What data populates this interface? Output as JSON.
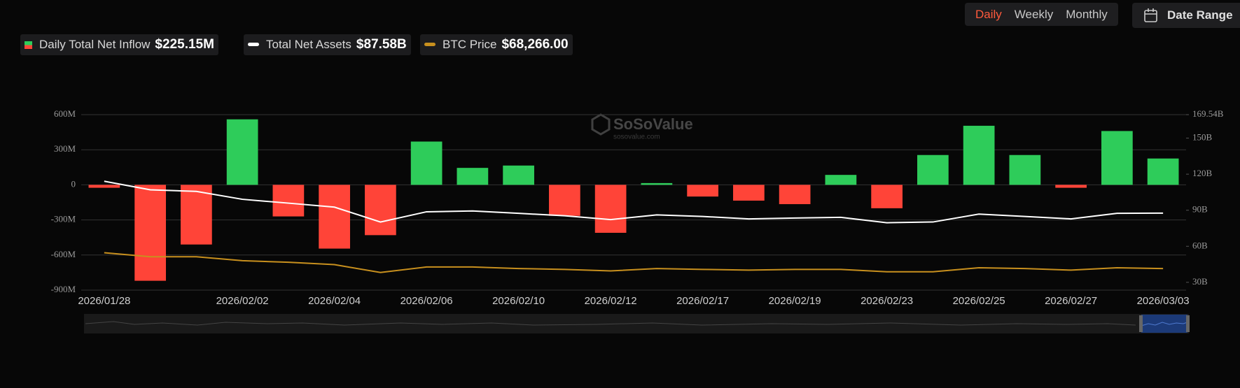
{
  "controls": {
    "periods": [
      "Daily",
      "Weekly",
      "Monthly"
    ],
    "date_range": "Date Range"
  },
  "watermark": {
    "brand": "SoSoValue",
    "url": "sosovalue.com"
  },
  "chart_data": {
    "type": "combo",
    "categories": [
      "2026/01/28",
      null,
      null,
      "2026/02/02",
      null,
      "2026/02/04",
      null,
      "2026/02/06",
      null,
      "2026/02/10",
      null,
      "2026/02/12",
      null,
      "2026/02/17",
      null,
      "2026/02/19",
      null,
      "2026/02/23",
      null,
      "2026/02/25",
      null,
      "2026/02/27",
      null,
      "2026/03/03"
    ],
    "series": [
      {
        "name": "Daily Total Net Inflow",
        "latest_label": "$225.15M",
        "type": "bar",
        "color_positive": "#2ecc5a",
        "color_negative": "#ff4438",
        "values": [
          -25,
          -820,
          -510,
          560,
          -270,
          -545,
          -430,
          370,
          145,
          165,
          -265,
          -410,
          15,
          -100,
          -135,
          -165,
          85,
          -200,
          255,
          505,
          255,
          -25,
          460,
          225.15
        ]
      },
      {
        "name": "Total Net Assets",
        "latest_label": "$87.58B",
        "type": "line",
        "axis": "y2",
        "color": "#ffffff",
        "values": [
          114.1,
          107,
          105.7,
          99.1,
          95.9,
          92.6,
          80.2,
          88.7,
          89.4,
          87.4,
          85.4,
          82.2,
          86.1,
          84.8,
          82.8,
          83.5,
          84.1,
          79.6,
          80.2,
          86.8,
          84.8,
          82.8,
          87.4,
          87.58
        ]
      },
      {
        "name": "BTC Price",
        "latest_label": "$68,266.00",
        "type": "line",
        "axis": "y3",
        "color": "#c8901e",
        "values": [
          89000,
          83800,
          83800,
          78600,
          76500,
          73400,
          63100,
          70300,
          70300,
          68300,
          67200,
          65200,
          68300,
          67200,
          66200,
          67200,
          67200,
          64100,
          64100,
          69300,
          68300,
          66200,
          69300,
          68266
        ]
      }
    ],
    "ylim": [
      -900,
      600
    ],
    "yticks": [
      {
        "value": -900,
        "label": "-900M"
      },
      {
        "value": -600,
        "label": "-600M"
      },
      {
        "value": -300,
        "label": "-300M"
      },
      0,
      {
        "value": 300,
        "label": "300M"
      },
      {
        "value": 600,
        "label": "600M"
      }
    ],
    "y2lim": [
      23.5,
      169.54
    ],
    "y2ticks": [
      {
        "value": 30,
        "label": "30B"
      },
      {
        "value": 60,
        "label": "60B"
      },
      {
        "value": 90,
        "label": "90B"
      },
      {
        "value": 120,
        "label": "120B"
      },
      {
        "value": 150,
        "label": "150B"
      },
      {
        "value": 169.54,
        "label": "169.54B"
      }
    ],
    "y3lim": [
      40000,
      270000
    ],
    "grid": true
  }
}
